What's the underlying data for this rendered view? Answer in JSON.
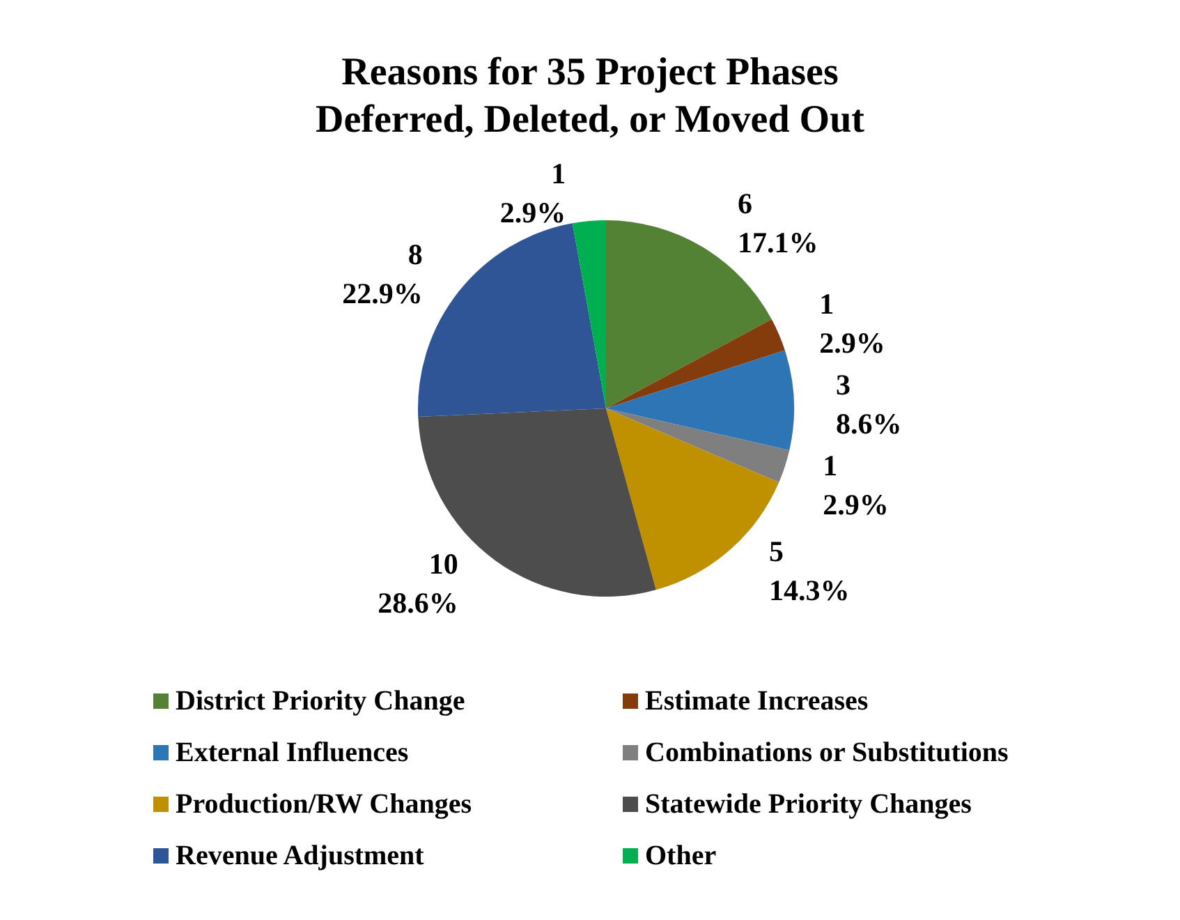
{
  "chart_data": {
    "type": "pie",
    "title": "Reasons for 35 Project Phases\nDeferred, Deleted, or Moved Out",
    "categories": [
      "District Priority Change",
      "Estimate Increases",
      "External Influences",
      "Combinations or Substitutions",
      "Production/RW Changes",
      "Statewide Priority Changes",
      "Revenue Adjustment",
      "Other"
    ],
    "values": [
      6,
      1,
      3,
      1,
      5,
      10,
      8,
      1
    ],
    "value_labels": [
      "6\n17.1%",
      "1\n2.9%",
      "3\n8.6%",
      "1\n2.9%",
      "5\n14.3%",
      "10\n28.6%",
      "8\n22.9%",
      "1\n2.9%"
    ],
    "colors": [
      "#548235",
      "#843c0c",
      "#2e75b6",
      "#7f7f7f",
      "#bf9000",
      "#4d4d4d",
      "#2f5597",
      "#00b050"
    ],
    "legend": "bottom"
  }
}
